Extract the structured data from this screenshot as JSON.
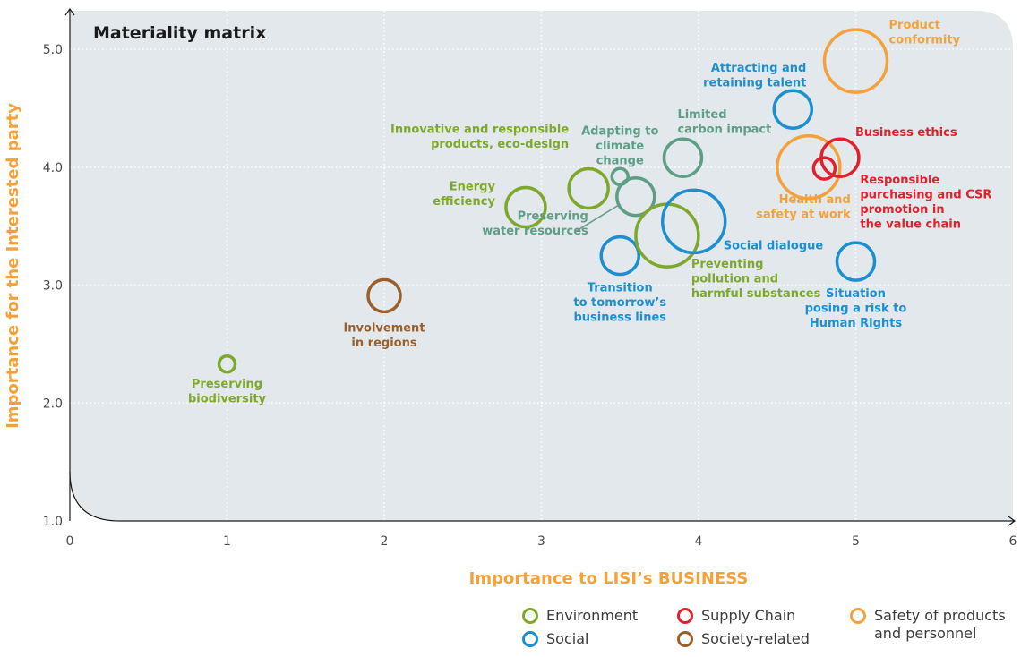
{
  "chart_data": {
    "type": "scatter",
    "subtype": "bubble",
    "title": "Materiality matrix",
    "xlabel": "Importance to LISI’s BUSINESS",
    "ylabel": "Importance for the Interested party",
    "xlim": [
      0,
      6
    ],
    "ylim": [
      1,
      5.4
    ],
    "x_ticks": [
      "0",
      "1",
      "2",
      "3",
      "4",
      "5",
      "6"
    ],
    "y_ticks": [
      "1.0",
      "2.0",
      "3.0",
      "4.0",
      "5.0"
    ],
    "grid": true,
    "legend_position": "bottom-right",
    "categories": [
      {
        "id": "environment",
        "name": "Environment",
        "color": "#7ea82b"
      },
      {
        "id": "supply",
        "name": "Supply Chain",
        "color": "#e2202b"
      },
      {
        "id": "safety",
        "name": "Safety of products\nand personnel",
        "color": "#f3a23b"
      },
      {
        "id": "social",
        "name": "Social",
        "color": "#1e8fce"
      },
      {
        "id": "society",
        "name": "Society-related",
        "color": "#9a5f2b"
      }
    ],
    "points": [
      {
        "label": "Preserving\nbiodiversity",
        "x": 1.0,
        "y": 2.33,
        "r": 9,
        "category": "environment"
      },
      {
        "label": "Involvement\nin regions",
        "x": 2.0,
        "y": 2.91,
        "r": 18,
        "category": "society"
      },
      {
        "label": "Energy\nefficiency",
        "x": 2.9,
        "y": 3.66,
        "r": 22,
        "category": "environment"
      },
      {
        "label": "Innovative and responsible\nproducts, eco-design",
        "x": 3.3,
        "y": 3.82,
        "r": 22,
        "category": "environment"
      },
      {
        "label": "Adapting to\nclimate\nchange",
        "x": 3.5,
        "y": 3.92,
        "r": 9,
        "category": "environment_water"
      },
      {
        "label": "Preserving\nwater resources",
        "x": 3.6,
        "y": 3.75,
        "r": 21,
        "category": "environment_water"
      },
      {
        "label": "Transition\nto tomorrow’s\nbusiness lines",
        "x": 3.5,
        "y": 3.25,
        "r": 21,
        "category": "social"
      },
      {
        "label": "Preventing\npollution and\nharmful substances",
        "x": 3.8,
        "y": 3.42,
        "r": 35,
        "category": "environment"
      },
      {
        "label": "Social dialogue",
        "x": 3.97,
        "y": 3.54,
        "r": 35,
        "category": "social"
      },
      {
        "label": "Limited\ncarbon impact",
        "x": 3.9,
        "y": 4.08,
        "r": 21,
        "category": "environment_water"
      },
      {
        "label": "Attracting and\nretaining talent",
        "x": 4.6,
        "y": 4.49,
        "r": 21,
        "category": "social"
      },
      {
        "label": "Product\nconformity",
        "x": 5.0,
        "y": 4.9,
        "r": 35,
        "category": "safety"
      },
      {
        "label": "Health and\nsafety at work",
        "x": 4.7,
        "y": 4.0,
        "r": 35,
        "category": "safety"
      },
      {
        "label": "Business ethics",
        "x": 4.9,
        "y": 4.08,
        "r": 21,
        "category": "supply"
      },
      {
        "label": "Responsible\npurchasing and CSR\npromotion in\nthe value chain",
        "x": 4.8,
        "y": 3.99,
        "r": 12,
        "category": "supply"
      },
      {
        "label": "Situation\nposing a risk to\nHuman Rights",
        "x": 5.0,
        "y": 3.2,
        "r": 21,
        "category": "social"
      }
    ]
  },
  "colors": {
    "plot_bg": "#e3e8ed",
    "axis": "#1a1a1a",
    "axis_title": "#f3a23b",
    "tick_text": "#4a4a4a",
    "title_text": "#1a1a1a",
    "water_green": "#5e9e84"
  },
  "legend": [
    {
      "name": "Environment",
      "color": "#7ea82b"
    },
    {
      "name": "Supply Chain",
      "color": "#e2202b"
    },
    {
      "name": "Safety of products\nand personnel",
      "color": "#f3a23b"
    },
    {
      "name": "Social",
      "color": "#1e8fce"
    },
    {
      "name": "Society-related",
      "color": "#9a5f2b"
    }
  ]
}
